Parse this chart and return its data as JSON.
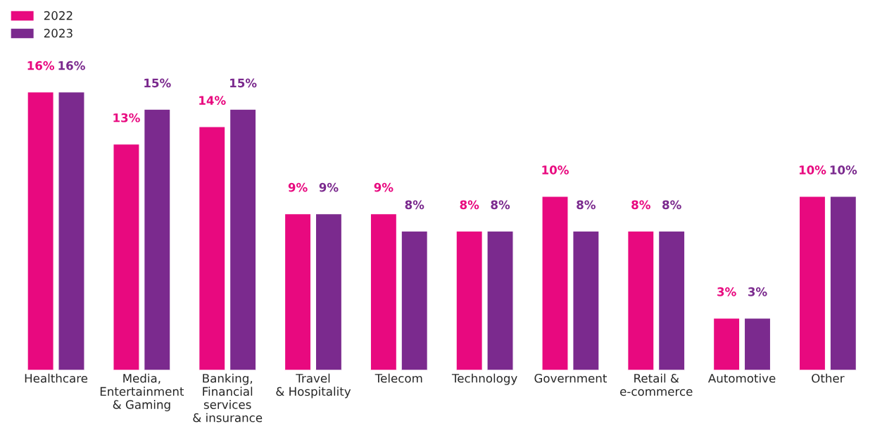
{
  "chart_data": {
    "type": "bar",
    "categories": [
      "Healthcare",
      "Media,\nEntertainment\n& Gaming",
      "Banking,\nFinancial\nservices\n& insurance",
      "Travel\n& Hospitality",
      "Telecom",
      "Technology",
      "Government",
      "Retail &\ne-commerce",
      "Automotive",
      "Other"
    ],
    "series": [
      {
        "name": "2022",
        "color": "#e8097f",
        "values": [
          16,
          13,
          14,
          9,
          9,
          8,
          10,
          8,
          3,
          10
        ],
        "value_labels": [
          "16%",
          "13%",
          "14%",
          "9%",
          "9%",
          "8%",
          "10%",
          "8%",
          "3%",
          "10%"
        ]
      },
      {
        "name": "2023",
        "color": "#7b2a8e",
        "values": [
          16,
          15,
          15,
          9,
          8,
          8,
          8,
          8,
          3,
          10
        ],
        "value_labels": [
          "16%",
          "15%",
          "15%",
          "9%",
          "8%",
          "8%",
          "8%",
          "8%",
          "3%",
          "10%"
        ]
      }
    ],
    "legend": "top left",
    "grid": false
  }
}
